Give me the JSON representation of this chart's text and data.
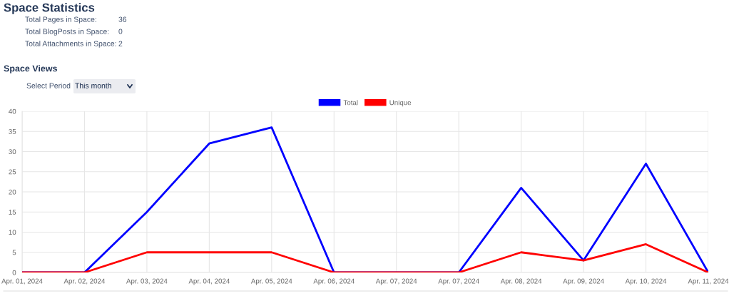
{
  "chart_data": {
    "type": "line",
    "title": "Space Statistics",
    "subtitle": "Space Views",
    "annotations": [
      "Total Pages in Space:",
      "36",
      "Total BlogPosts in Space:",
      "0",
      "Total Attachments in Space:",
      "2",
      "Select Period",
      "This month"
    ],
    "categories": [
      "Apr. 01, 2024",
      "Apr. 02, 2024",
      "Apr. 03, 2024",
      "Apr. 04, 2024",
      "Apr. 05, 2024",
      "Apr. 06, 2024",
      "Apr. 07, 2024",
      "Apr. 07, 2024",
      "Apr. 08, 2024",
      "Apr. 09, 2024",
      "Apr. 10, 2024",
      "Apr. 11, 2024"
    ],
    "series": [
      {
        "name": "Total",
        "color": "#0000ff",
        "values": [
          0,
          0,
          15,
          32,
          36,
          0,
          0,
          0,
          21,
          3,
          27,
          0
        ]
      },
      {
        "name": "Unique",
        "color": "#ff0000",
        "values": [
          0,
          0,
          5,
          5,
          5,
          0,
          0,
          0,
          5,
          3,
          7,
          0
        ]
      }
    ],
    "ylim": [
      0,
      40
    ],
    "yticks": [
      0,
      5,
      10,
      15,
      20,
      25,
      30,
      35,
      40
    ],
    "grid": true,
    "legend": "top",
    "marker": "none",
    "line_style": "solid"
  }
}
